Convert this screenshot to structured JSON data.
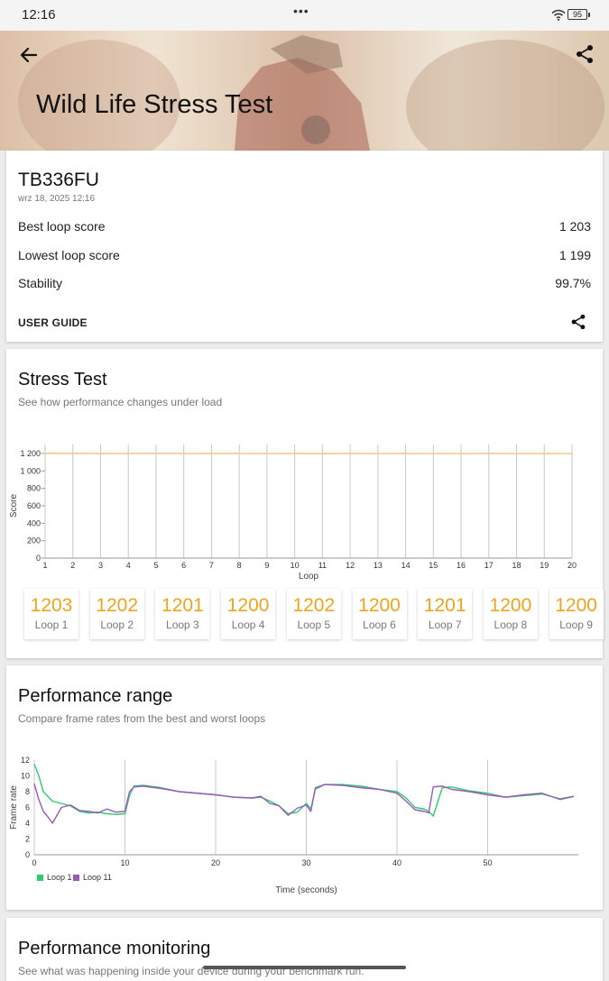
{
  "status_bar": {
    "time": "12:16",
    "battery": "95"
  },
  "header": {
    "title": "Wild Life Stress Test"
  },
  "summary": {
    "device": "TB336FU",
    "date": "wrz 18, 2025 12:16",
    "rows": [
      {
        "label": "Best loop score",
        "value": "1 203"
      },
      {
        "label": "Lowest loop score",
        "value": "1 199"
      },
      {
        "label": "Stability",
        "value": "99.7%"
      }
    ],
    "user_guide": "USER GUIDE"
  },
  "stress_test": {
    "title": "Stress Test",
    "subtitle": "See how performance changes under load",
    "loops": [
      {
        "value": "1203",
        "label": "Loop 1"
      },
      {
        "value": "1202",
        "label": "Loop 2"
      },
      {
        "value": "1201",
        "label": "Loop 3"
      },
      {
        "value": "1200",
        "label": "Loop 4"
      },
      {
        "value": "1202",
        "label": "Loop 5"
      },
      {
        "value": "1200",
        "label": "Loop 6"
      },
      {
        "value": "1201",
        "label": "Loop 7"
      },
      {
        "value": "1200",
        "label": "Loop 8"
      },
      {
        "value": "1200",
        "label": "Loop 9"
      }
    ]
  },
  "performance_range": {
    "title": "Performance range",
    "subtitle": "Compare frame rates from the best and worst loops"
  },
  "performance_monitoring": {
    "title": "Performance monitoring",
    "subtitle": "See what was happening inside your device during your benchmark run."
  },
  "colors": {
    "accent": "#f0a41c",
    "score_line": "#f2c98a",
    "loop1": "#2ecc71",
    "loop11": "#9b59b6"
  },
  "chart_data": [
    {
      "type": "line",
      "title": "",
      "xlabel": "Loop",
      "ylabel": "Score",
      "xlim": [
        1,
        20
      ],
      "ylim": [
        0,
        1200
      ],
      "x_ticks": [
        "1",
        "2",
        "3",
        "4",
        "5",
        "6",
        "7",
        "8",
        "9",
        "10",
        "11",
        "12",
        "13",
        "14",
        "15",
        "16",
        "17",
        "18",
        "19",
        "20"
      ],
      "y_ticks": [
        {
          "value": 0,
          "label": "0"
        },
        {
          "value": 200,
          "label": "200"
        },
        {
          "value": 400,
          "label": "400"
        },
        {
          "value": 600,
          "label": "600"
        },
        {
          "value": 800,
          "label": "800"
        },
        {
          "value": 1000,
          "label": "1 000"
        },
        {
          "value": 1200,
          "label": "1 200"
        }
      ],
      "x": [
        1,
        2,
        3,
        4,
        5,
        6,
        7,
        8,
        9,
        10,
        11,
        12,
        13,
        14,
        15,
        16,
        17,
        18,
        19,
        20
      ],
      "values": [
        1203,
        1202,
        1201,
        1200,
        1202,
        1200,
        1201,
        1200,
        1200,
        1201,
        1199,
        1201,
        1200,
        1201,
        1200,
        1200,
        1201,
        1200,
        1200,
        1200
      ],
      "grid": "vertical"
    },
    {
      "type": "line",
      "title": "",
      "xlabel": "Time (seconds)",
      "ylabel": "Frame rate",
      "xlim": [
        0,
        60
      ],
      "ylim": [
        0,
        12
      ],
      "x_ticks": [
        0,
        10,
        20,
        30,
        40,
        50
      ],
      "y_ticks": [
        0,
        2,
        4,
        6,
        8,
        10,
        12
      ],
      "legend_position": "bottom-left",
      "series": [
        {
          "name": "Loop 1",
          "x": [
            0,
            0.5,
            1,
            2,
            3,
            4,
            5,
            6,
            7,
            8,
            9,
            10,
            10.5,
            11,
            12,
            14,
            16,
            18,
            20,
            22,
            24,
            25,
            26,
            27,
            28,
            29,
            30,
            30.5,
            31,
            32,
            34,
            36,
            38,
            40,
            41,
            42,
            43,
            43.5,
            44,
            45,
            46,
            48,
            50,
            52,
            54,
            56,
            58,
            59.5
          ],
          "values": [
            11.5,
            10,
            8,
            6.8,
            6.5,
            6.2,
            5.5,
            5.3,
            5.4,
            5.2,
            5.1,
            5.2,
            7.5,
            8.7,
            8.8,
            8.5,
            8,
            7.8,
            7.6,
            7.3,
            7.2,
            7.3,
            6.8,
            6.2,
            5.2,
            5.4,
            6.5,
            5.8,
            8.3,
            8.9,
            8.9,
            8.7,
            8.3,
            8,
            7.2,
            6,
            5.8,
            5.5,
            4.9,
            8.5,
            8.6,
            8.1,
            7.8,
            7.3,
            7.5,
            7.7,
            7.1,
            7.4
          ]
        },
        {
          "name": "Loop 11",
          "x": [
            0,
            0.5,
            1,
            1.5,
            2,
            3,
            4,
            5,
            6,
            7,
            8,
            9,
            10,
            10.5,
            11,
            12,
            14,
            16,
            18,
            20,
            22,
            24,
            25,
            26,
            27,
            28,
            29,
            30,
            30.5,
            31,
            32,
            34,
            36,
            38,
            40,
            41,
            42,
            43,
            43.5,
            44,
            45,
            46,
            48,
            50,
            52,
            54,
            56,
            58,
            59.5
          ],
          "values": [
            9,
            7,
            5.5,
            4.8,
            4,
            6,
            6.3,
            5.6,
            5.5,
            5.3,
            5.8,
            5.4,
            5.5,
            8,
            8.6,
            8.7,
            8.4,
            8,
            7.8,
            7.6,
            7.3,
            7.2,
            7.4,
            6.5,
            6.2,
            5,
            5.9,
            6.3,
            5.5,
            8.5,
            8.9,
            8.8,
            8.5,
            8.3,
            7.8,
            6.8,
            5.7,
            5.5,
            5.3,
            8.6,
            8.7,
            8.3,
            8,
            7.6,
            7.3,
            7.6,
            7.8,
            7,
            7.4
          ]
        }
      ]
    }
  ]
}
